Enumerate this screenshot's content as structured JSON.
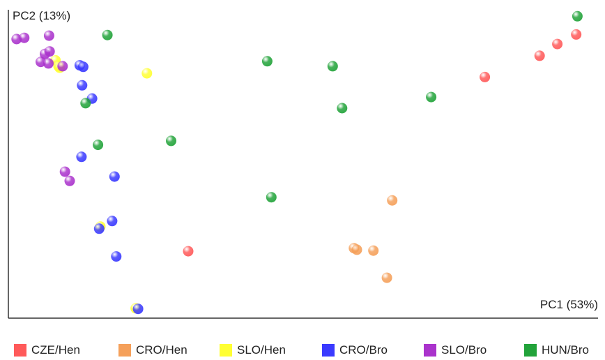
{
  "chart_data": {
    "type": "scatter",
    "xlabel": "PC1 (53%)",
    "ylabel": "PC2 (13%)",
    "xlim": [
      0,
      100
    ],
    "ylim": [
      0,
      100
    ],
    "grid": false,
    "legend_position": "bottom",
    "series": [
      {
        "name": "CZE/Hen",
        "color": "#ff5a5a",
        "points": [
          [
            96.3,
            92.0
          ],
          [
            93.1,
            88.9
          ],
          [
            90.1,
            85.1
          ],
          [
            80.8,
            78.2
          ],
          [
            30.5,
            21.7
          ]
        ]
      },
      {
        "name": "CRO/Hen",
        "color": "#f5a05a",
        "points": [
          [
            65.1,
            38.2
          ],
          [
            58.6,
            22.7
          ],
          [
            59.1,
            22.2
          ],
          [
            61.9,
            21.9
          ],
          [
            64.2,
            13.1
          ]
        ]
      },
      {
        "name": "SLO/Hen",
        "color": "#ffff33",
        "points": [
          [
            8.0,
            83.6
          ],
          [
            8.5,
            81.7
          ],
          [
            8.7,
            81.2
          ],
          [
            23.5,
            79.4
          ],
          [
            15.6,
            29.7
          ],
          [
            21.6,
            3.2
          ]
        ]
      },
      {
        "name": "CRO/Bro",
        "color": "#3a3aff",
        "points": [
          [
            12.1,
            82.0
          ],
          [
            12.7,
            81.5
          ],
          [
            12.5,
            75.5
          ],
          [
            14.2,
            71.2
          ],
          [
            12.4,
            52.3
          ],
          [
            18.0,
            45.9
          ],
          [
            17.6,
            31.5
          ],
          [
            15.4,
            29.0
          ],
          [
            18.3,
            20.0
          ],
          [
            22.0,
            3.0
          ]
        ]
      },
      {
        "name": "SLO/Bro",
        "color": "#aa33cc",
        "points": [
          [
            1.4,
            90.5
          ],
          [
            2.7,
            90.9
          ],
          [
            6.9,
            91.6
          ],
          [
            6.2,
            85.7
          ],
          [
            7.0,
            86.5
          ],
          [
            5.5,
            83.1
          ],
          [
            6.8,
            82.6
          ],
          [
            9.2,
            81.7
          ],
          [
            9.6,
            47.5
          ],
          [
            10.4,
            44.5
          ]
        ]
      },
      {
        "name": "HUN/Bro",
        "color": "#22a33a",
        "points": [
          [
            96.5,
            97.9
          ],
          [
            16.8,
            91.8
          ],
          [
            43.9,
            83.3
          ],
          [
            55.0,
            81.7
          ],
          [
            71.7,
            71.7
          ],
          [
            56.6,
            68.1
          ],
          [
            13.1,
            69.7
          ],
          [
            15.2,
            56.2
          ],
          [
            27.6,
            57.5
          ],
          [
            44.6,
            39.2
          ]
        ]
      }
    ]
  }
}
